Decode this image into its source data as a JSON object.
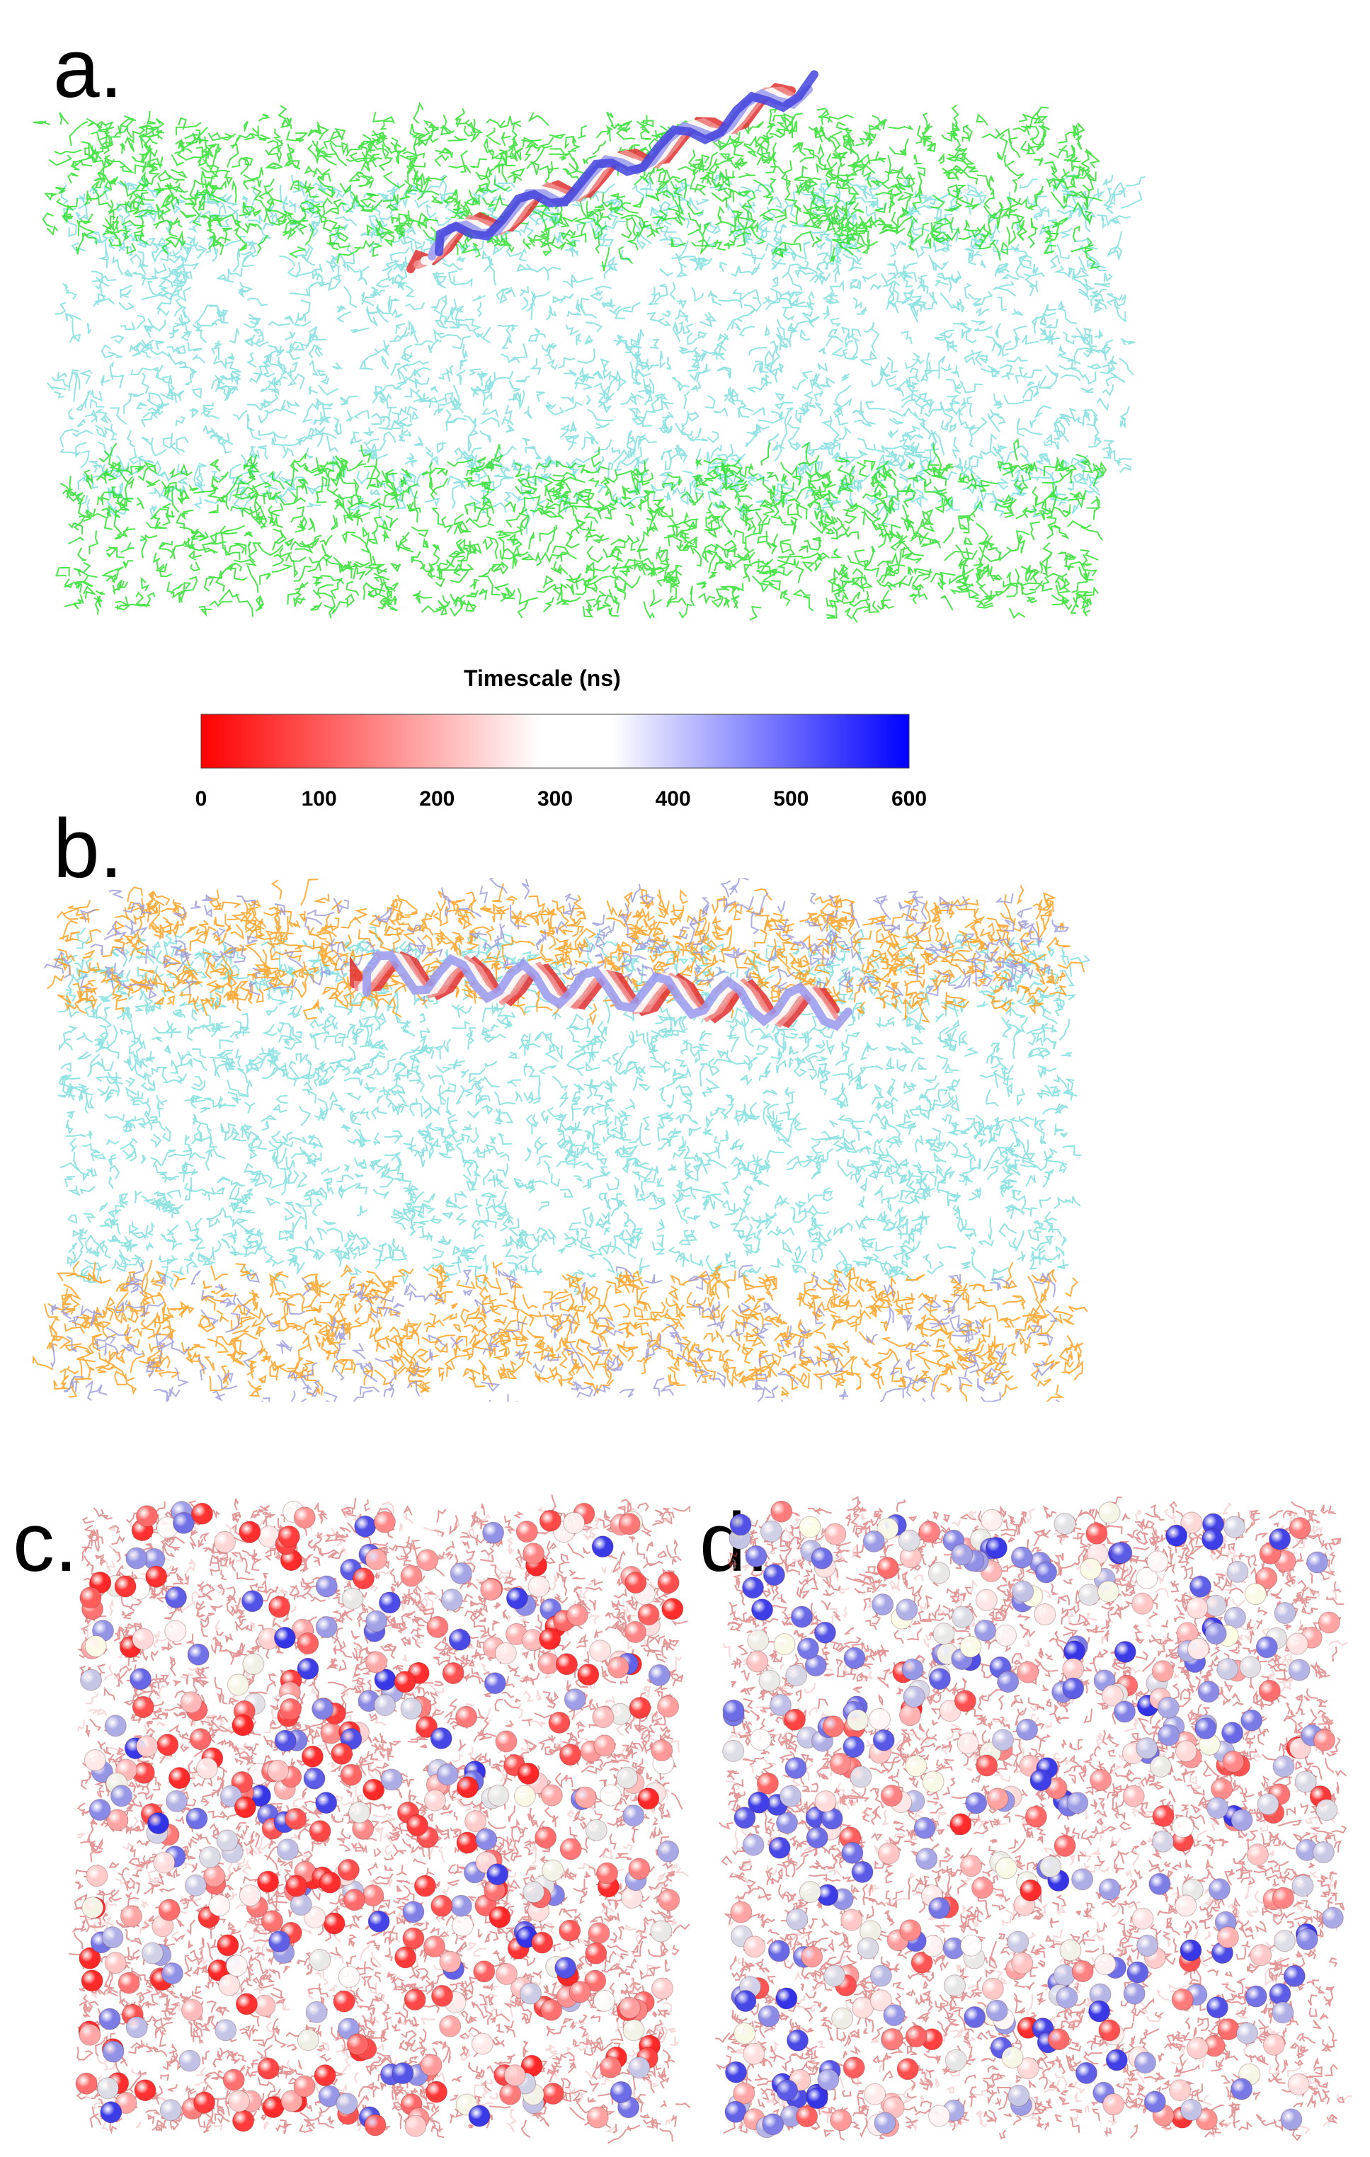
{
  "panels": {
    "a": {
      "label": "a."
    },
    "b": {
      "label": "b."
    },
    "c": {
      "label": "c."
    },
    "d": {
      "label": "d."
    }
  },
  "colorbar": {
    "title": "Timescale (ns)",
    "ticks": [
      "0",
      "100",
      "200",
      "300",
      "400",
      "500",
      "600"
    ],
    "tick_values": [
      0,
      100,
      200,
      300,
      400,
      500,
      600
    ],
    "range": [
      0,
      600
    ],
    "colors": {
      "low": "#ff0000",
      "mid": "#ffffff",
      "high": "#0000ff"
    }
  },
  "colors": {
    "headgroup_green": "#22dd22",
    "tails_cyan": "#33cccc",
    "headgroup_orange": "#ffa020",
    "headgroup_lavender": "#9999dd",
    "sphere_red": "#e02020",
    "sphere_blue": "#3030dd"
  }
}
